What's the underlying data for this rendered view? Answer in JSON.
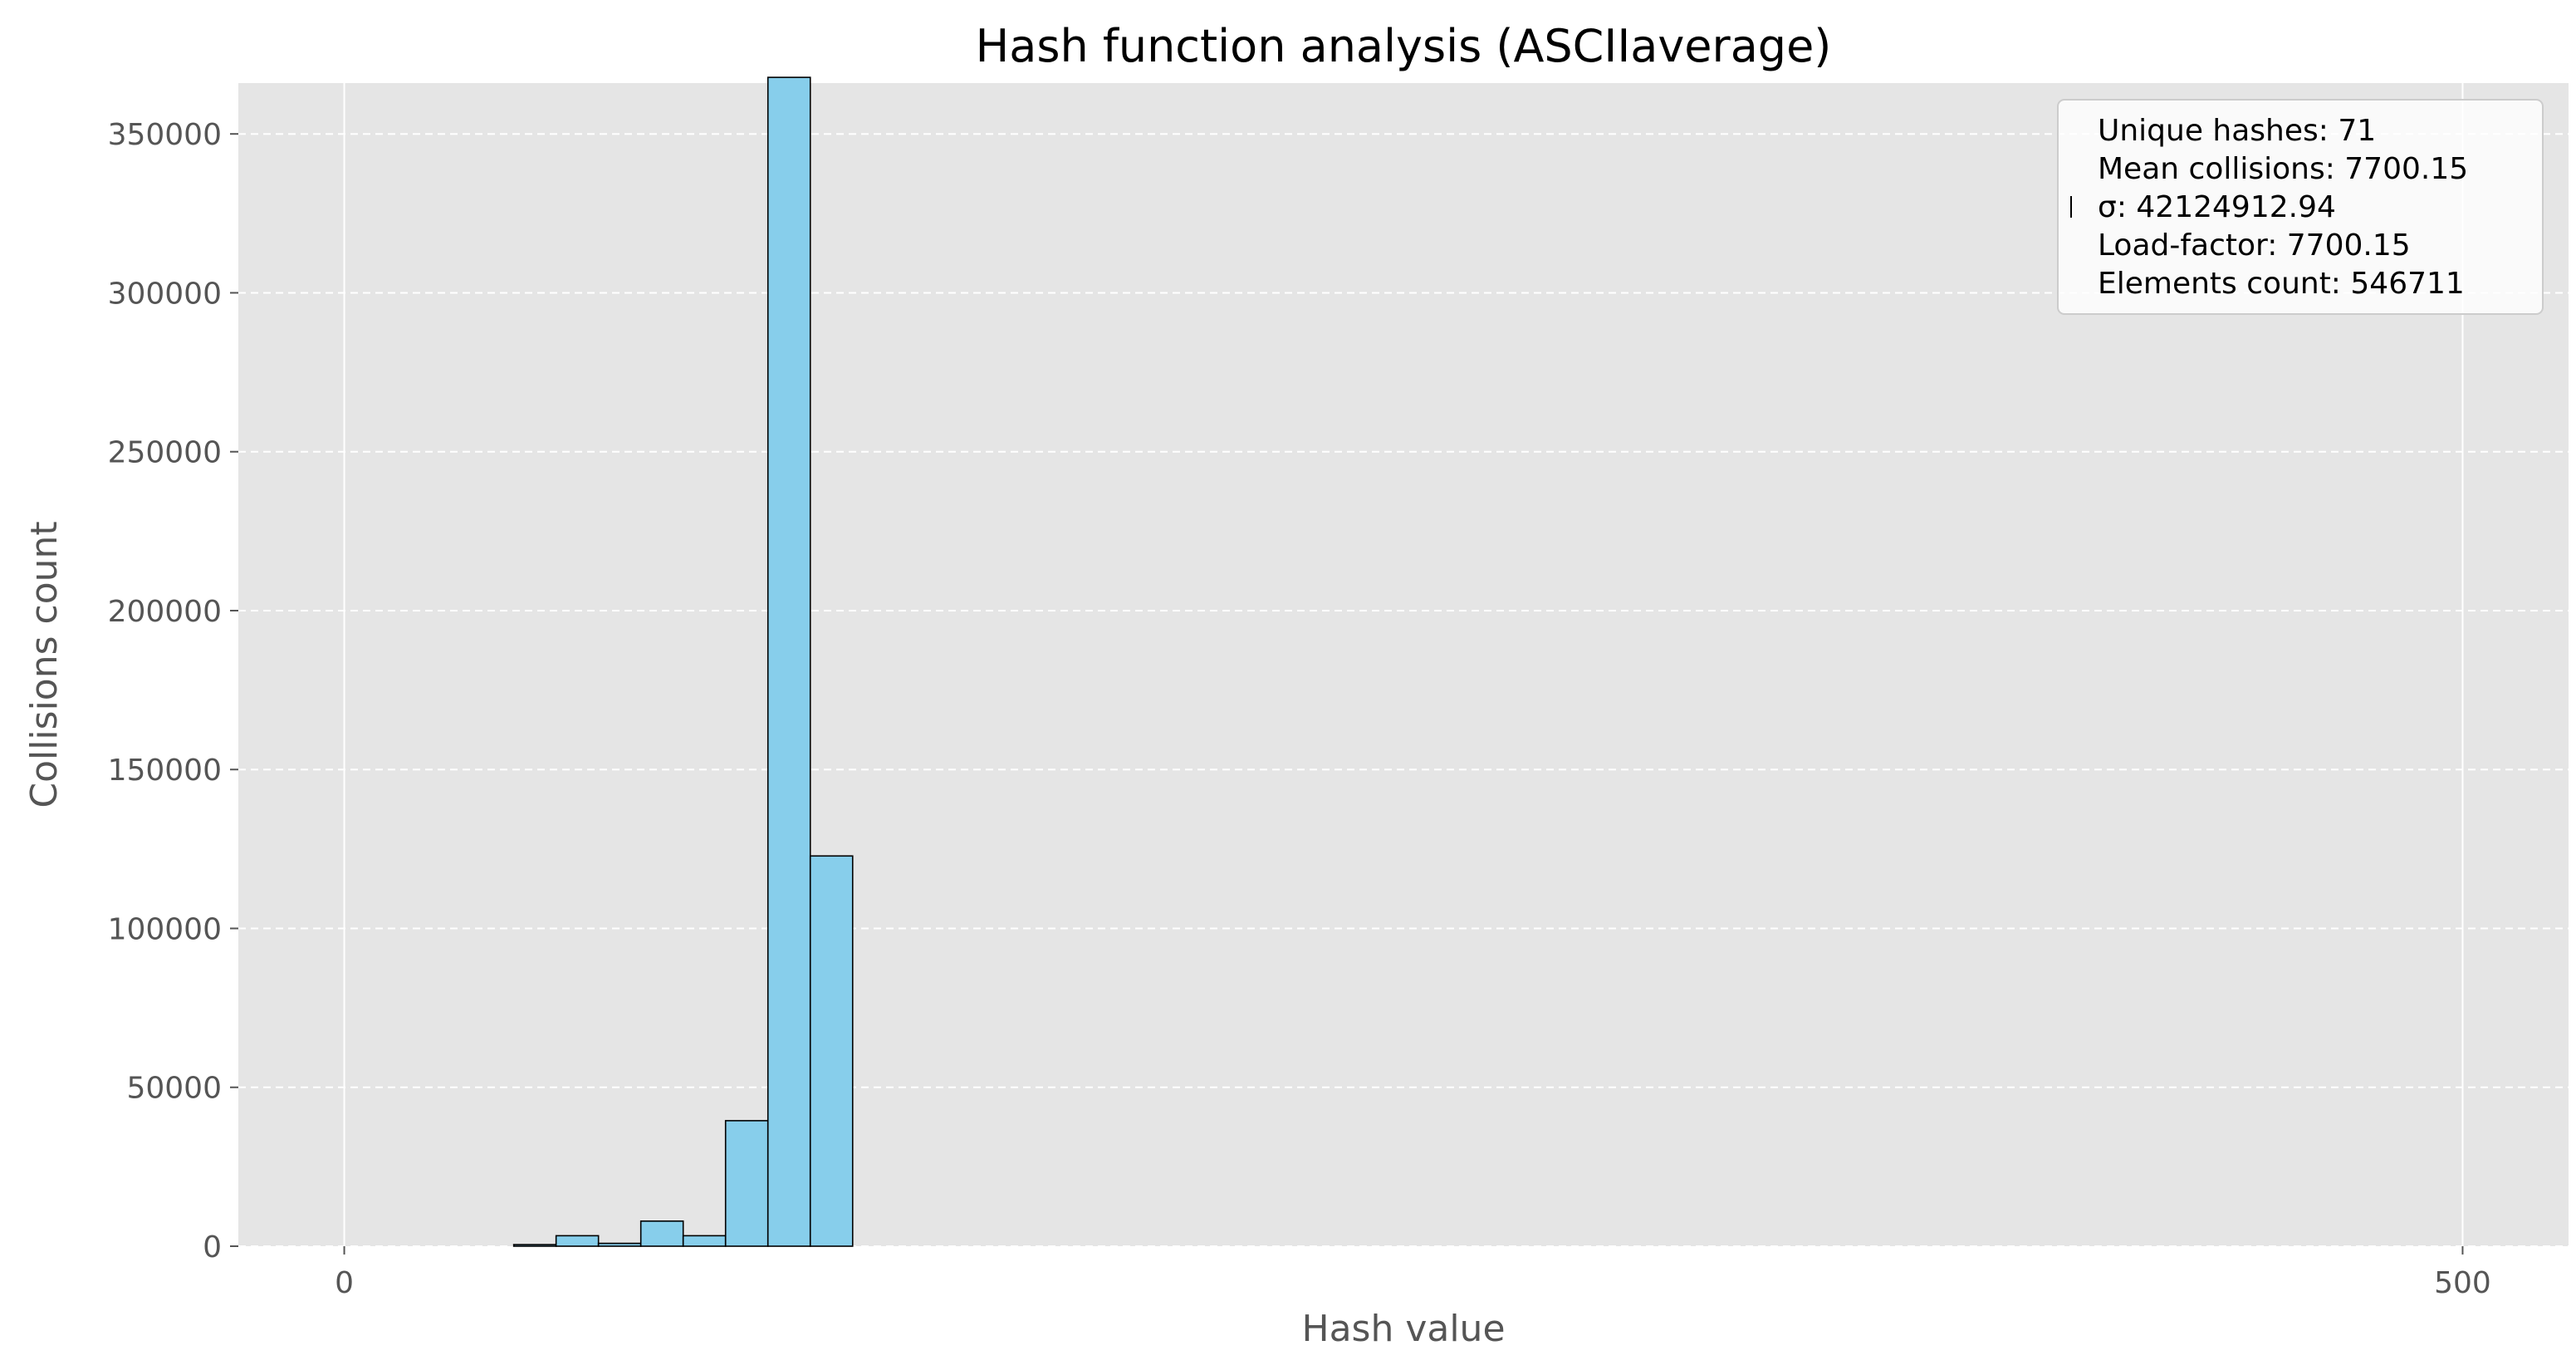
{
  "chart_data": {
    "type": "bar",
    "title": "Hash function analysis (ASCIIaverage)",
    "xlabel": "Hash value",
    "ylabel": "Collisions count",
    "xlim": [
      -25,
      525
    ],
    "ylim": [
      0,
      366000
    ],
    "x_ticks": [
      0,
      500
    ],
    "y_ticks": [
      0,
      50000,
      100000,
      150000,
      200000,
      250000,
      300000,
      350000
    ],
    "y_grid": true,
    "y_grid_style": "dashed",
    "x_grid": true,
    "bar_color": "#87ceeb",
    "edge_color": "#000000",
    "plot_background": "#e5e5e5",
    "bins": [
      {
        "x0": 40,
        "x1": 50,
        "value": 500
      },
      {
        "x0": 50,
        "x1": 60,
        "value": 3300
      },
      {
        "x0": 60,
        "x1": 70,
        "value": 900
      },
      {
        "x0": 70,
        "x1": 80,
        "value": 7900
      },
      {
        "x0": 80,
        "x1": 90,
        "value": 3300
      },
      {
        "x0": 90,
        "x1": 100,
        "value": 39500
      },
      {
        "x0": 100,
        "x1": 110,
        "value": 367800
      },
      {
        "x0": 110,
        "x1": 120,
        "value": 122800
      }
    ],
    "legend": {
      "placement": "top-right",
      "entries": [
        "Unique hashes: 71",
        "Mean collisions: 7700.15",
        "σ: 42124912.94",
        "Load-factor: 7700.15",
        "Elements count: 546711"
      ]
    }
  }
}
